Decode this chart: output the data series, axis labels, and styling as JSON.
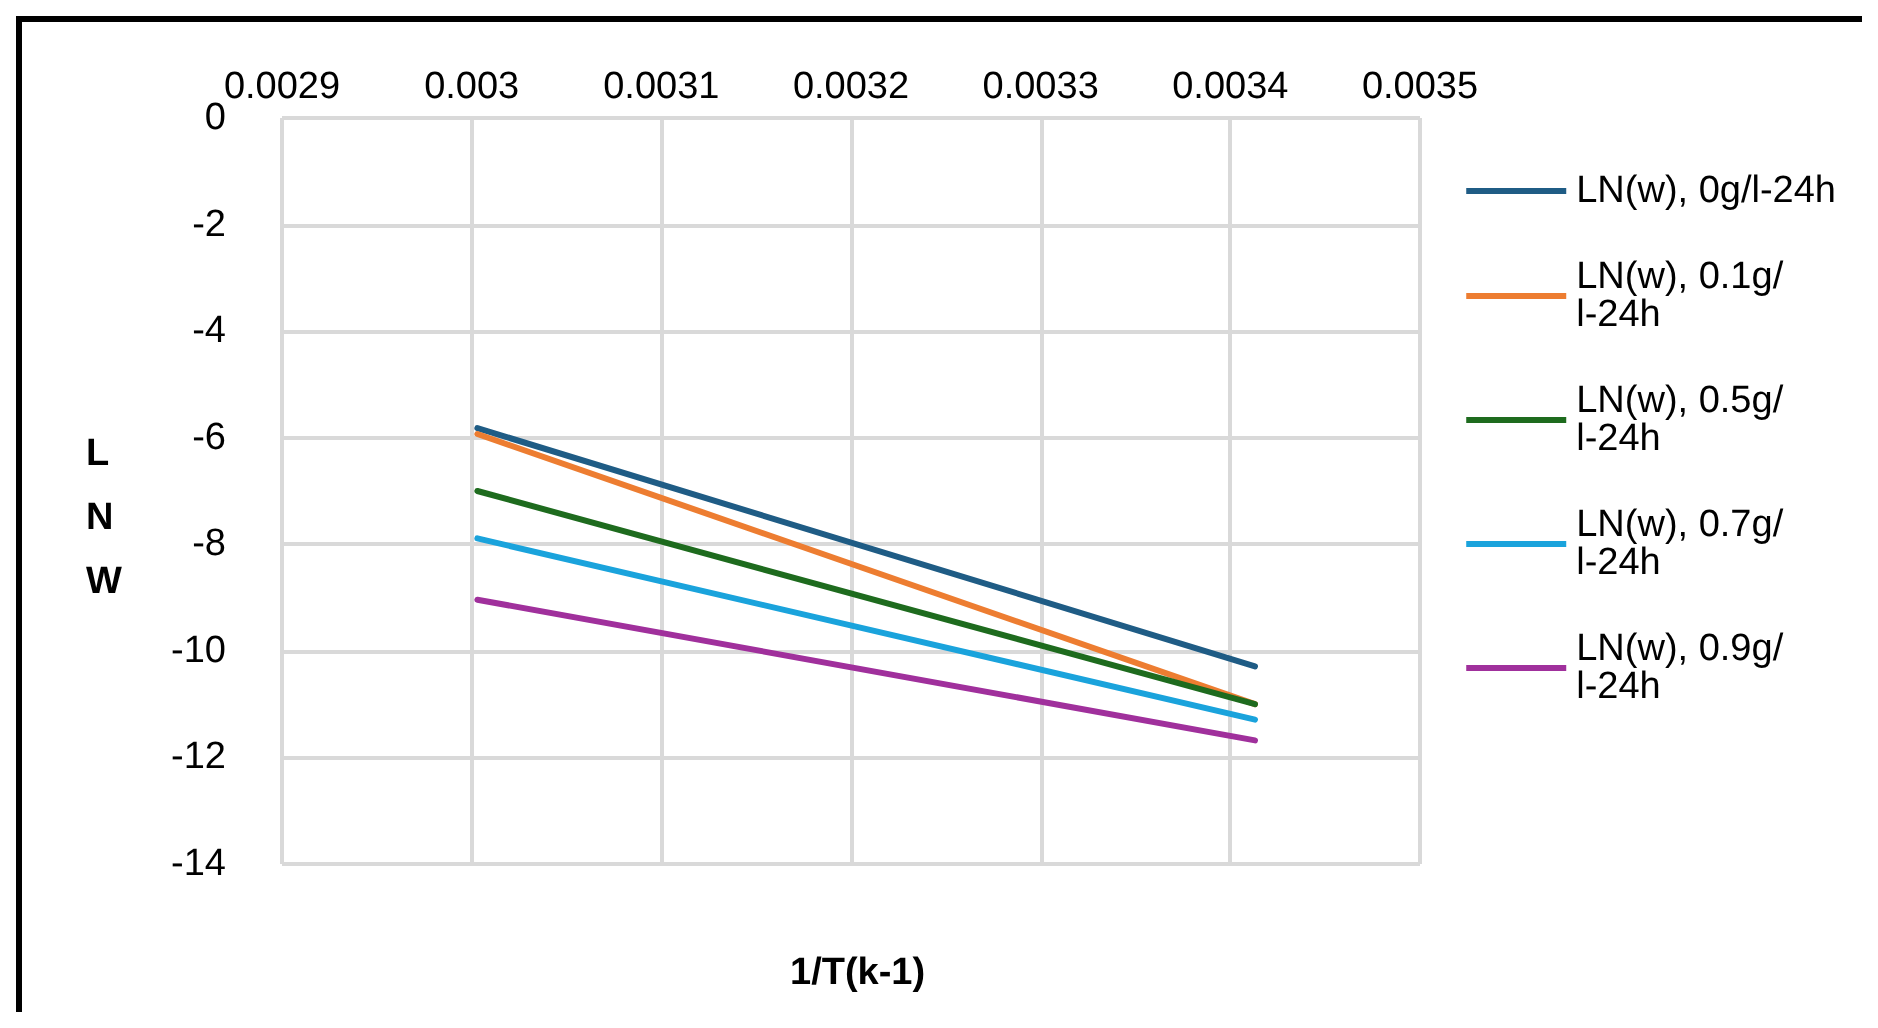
{
  "chart_data": {
    "type": "line",
    "xlabel": "1/T(k-1)",
    "ylabel": "LNW",
    "xlim": [
      0.0029,
      0.0035
    ],
    "xticks": [
      0.0029,
      0.003,
      0.0031,
      0.0032,
      0.0033,
      0.0034,
      0.0035
    ],
    "ylim": [
      -14,
      0
    ],
    "yticks": [
      0,
      -2,
      -4,
      -6,
      -8,
      -10,
      -12,
      -14
    ],
    "grid": true,
    "legend": "right",
    "marker": "none",
    "line_style": "solid",
    "x": [
      0.003003,
      0.003413
    ],
    "series": [
      {
        "name": "LN(w), 0g/l-24h",
        "color": "#1f5c85",
        "values": [
          -5.82,
          -10.29
        ]
      },
      {
        "name": "LN(w), 0.1g/l-24h",
        "color": "#ed7d31",
        "values": [
          -5.93,
          -11.0
        ]
      },
      {
        "name": "LN(w), 0.5g/l-24h",
        "color": "#1e6b1e",
        "values": [
          -7.0,
          -11.0
        ]
      },
      {
        "name": "LN(w), 0.7g/l-24h",
        "color": "#1aa3dc",
        "values": [
          -7.89,
          -11.29
        ]
      },
      {
        "name": "LN(w), 0.9g/l-24h",
        "color": "#a0309c",
        "values": [
          -9.04,
          -11.68
        ]
      }
    ]
  }
}
